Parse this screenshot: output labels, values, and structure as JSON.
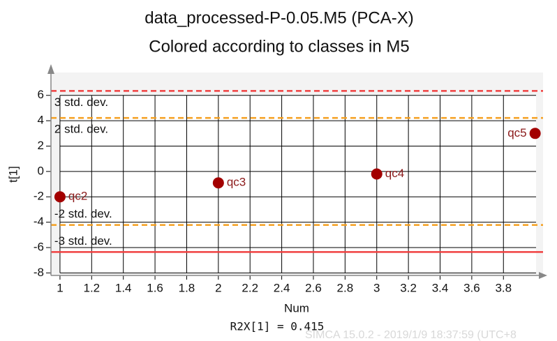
{
  "chart_data": {
    "type": "scatter",
    "title": "data_processed-P-0.05.M5 (PCA-X)",
    "subtitle": "Colored according to classes in M5",
    "x_label": "Num",
    "y_label": "t[1]",
    "footer": "R2X[1] = 0.415",
    "watermark": "SIMCA 15.0.2 - 2019/1/9 18:37:59 (UTC+8",
    "x": [
      1,
      2,
      3,
      4
    ],
    "values": [
      -2.0,
      -0.9,
      -0.2,
      3.0
    ],
    "point_labels": [
      "qc2",
      "qc3",
      "qc4",
      "qc5"
    ],
    "color": "#a30000",
    "xlim": [
      0.943,
      4.05
    ],
    "ylim": [
      -8.2,
      7.8
    ],
    "xticks": [
      1,
      1.2,
      1.4,
      1.6,
      1.8,
      2,
      2.2,
      2.4,
      2.6,
      2.8,
      3,
      3.2,
      3.4,
      3.6,
      3.8
    ],
    "yticks": [
      -8,
      -6,
      -4,
      -2,
      0,
      2,
      4,
      6
    ],
    "grid": true,
    "reference_lines": [
      {
        "value": 6.35,
        "label": "3 std. dev.",
        "color": "#f04040",
        "style": "dashed"
      },
      {
        "value": 4.22,
        "label": "2 std. dev.",
        "color": "#f5a020",
        "style": "dashed"
      },
      {
        "value": -4.22,
        "label": "-2 std. dev.",
        "color": "#f5a020",
        "style": "dashed"
      },
      {
        "value": -6.35,
        "label": "-3 std. dev.",
        "color": "#f04040",
        "style": "solid"
      }
    ]
  }
}
